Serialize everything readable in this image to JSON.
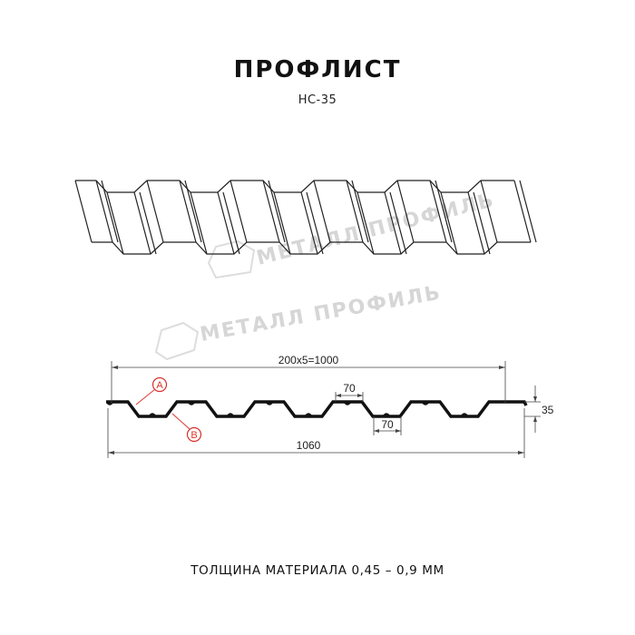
{
  "header": {
    "title": "ПРОФЛИСТ",
    "model": "НС-35"
  },
  "watermark": {
    "text": "МЕТАЛЛ ПРОФИЛЬ"
  },
  "drawing": {
    "dim_pitch": "200x5=1000",
    "dim_top_flat": "70",
    "dim_bottom_flat": "70",
    "dim_height": "35",
    "dim_total_width": "1060",
    "marker_a": "A",
    "marker_b": "B",
    "marker_color": "#d9302c"
  },
  "footer": {
    "thickness": "ТОЛЩИНА МАТЕРИАЛА 0,45 – 0,9 ММ"
  }
}
